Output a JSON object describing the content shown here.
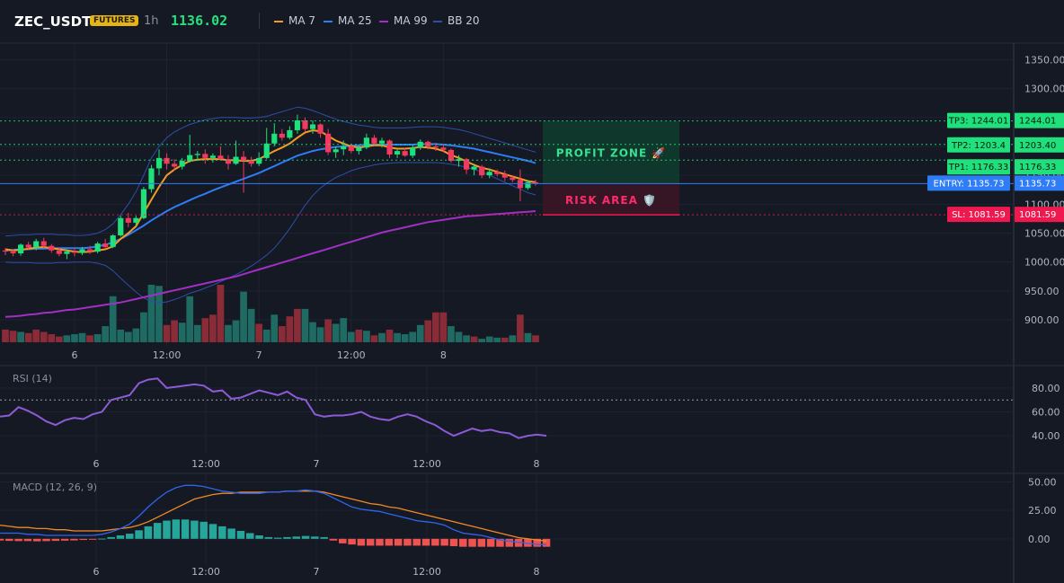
{
  "header": {
    "symbol": "ZEC_USDT",
    "badge": "FUTURES",
    "timeframe": "1h",
    "price": "1136.02",
    "legend": [
      {
        "label": "MA 7",
        "color": "#f59b22"
      },
      {
        "label": "MA 25",
        "color": "#2f7df6"
      },
      {
        "label": "MA 99",
        "color": "#a22fc4"
      },
      {
        "label": "BB 20",
        "color": "#2e4ea8"
      }
    ]
  },
  "colors": {
    "up": "#26a69a",
    "up_bright": "#1fe07a",
    "down": "#f23a5e",
    "vol_up": "#1f6b63",
    "vol_down": "#8a2b38",
    "tp": "#1fe07a",
    "entry": "#2f7df6",
    "sl": "#f0194f"
  },
  "chart_data": [
    {
      "type": "candlestick",
      "title": "ZEC_USDT",
      "ylim": [
        855,
        1360
      ],
      "y_ticks": [
        "1350.00",
        "1300.00",
        "1250.00",
        "1200.00",
        "1150.00",
        "1100.00",
        "1050.00",
        "1000.00",
        "950.00",
        "900.00"
      ],
      "x_ticks": [
        "6",
        "12:00",
        "7",
        "12:00",
        "8"
      ],
      "ohlc": [
        [
          1020,
          1024,
          1012,
          1018
        ],
        [
          1018,
          1022,
          1010,
          1015
        ],
        [
          1015,
          1032,
          1011,
          1030
        ],
        [
          1030,
          1035,
          1022,
          1025
        ],
        [
          1025,
          1040,
          1020,
          1036
        ],
        [
          1036,
          1042,
          1024,
          1028
        ],
        [
          1028,
          1031,
          1016,
          1020
        ],
        [
          1020,
          1025,
          1010,
          1014
        ],
        [
          1014,
          1022,
          1005,
          1018
        ],
        [
          1018,
          1024,
          1010,
          1016
        ],
        [
          1016,
          1026,
          1012,
          1022
        ],
        [
          1022,
          1028,
          1014,
          1018
        ],
        [
          1018,
          1035,
          1015,
          1032
        ],
        [
          1032,
          1040,
          1022,
          1026
        ],
        [
          1026,
          1048,
          1024,
          1046
        ],
        [
          1046,
          1080,
          1044,
          1076
        ],
        [
          1076,
          1085,
          1060,
          1068
        ],
        [
          1068,
          1080,
          1062,
          1076
        ],
        [
          1076,
          1130,
          1074,
          1126
        ],
        [
          1126,
          1168,
          1120,
          1162
        ],
        [
          1162,
          1195,
          1150,
          1180
        ],
        [
          1180,
          1188,
          1160,
          1170
        ],
        [
          1170,
          1178,
          1158,
          1165
        ],
        [
          1165,
          1180,
          1160,
          1175
        ],
        [
          1175,
          1220,
          1172,
          1185
        ],
        [
          1185,
          1192,
          1175,
          1187
        ],
        [
          1187,
          1195,
          1170,
          1180
        ],
        [
          1180,
          1188,
          1172,
          1184
        ],
        [
          1184,
          1200,
          1176,
          1178
        ],
        [
          1178,
          1185,
          1160,
          1170
        ],
        [
          1170,
          1210,
          1168,
          1182
        ],
        [
          1182,
          1192,
          1120,
          1175
        ],
        [
          1175,
          1182,
          1165,
          1170
        ],
        [
          1170,
          1190,
          1166,
          1180
        ],
        [
          1180,
          1232,
          1178,
          1205
        ],
        [
          1205,
          1240,
          1200,
          1222
        ],
        [
          1222,
          1230,
          1210,
          1215
        ],
        [
          1215,
          1235,
          1212,
          1228
        ],
        [
          1228,
          1255,
          1222,
          1245
        ],
        [
          1245,
          1250,
          1225,
          1230
        ],
        [
          1230,
          1245,
          1222,
          1238
        ],
        [
          1238,
          1240,
          1215,
          1222
        ],
        [
          1222,
          1230,
          1185,
          1190
        ],
        [
          1190,
          1200,
          1180,
          1195
        ],
        [
          1195,
          1210,
          1185,
          1200
        ],
        [
          1200,
          1205,
          1188,
          1192
        ],
        [
          1192,
          1202,
          1186,
          1198
        ],
        [
          1198,
          1222,
          1195,
          1215
        ],
        [
          1215,
          1220,
          1202,
          1205
        ],
        [
          1205,
          1215,
          1198,
          1210
        ],
        [
          1210,
          1212,
          1180,
          1186
        ],
        [
          1186,
          1196,
          1180,
          1192
        ],
        [
          1192,
          1198,
          1182,
          1184
        ],
        [
          1184,
          1202,
          1180,
          1198
        ],
        [
          1198,
          1212,
          1194,
          1208
        ],
        [
          1208,
          1210,
          1195,
          1200
        ],
        [
          1200,
          1206,
          1192,
          1198
        ],
        [
          1198,
          1204,
          1190,
          1194
        ],
        [
          1194,
          1196,
          1172,
          1175
        ],
        [
          1175,
          1185,
          1165,
          1178
        ],
        [
          1178,
          1180,
          1152,
          1160
        ],
        [
          1160,
          1170,
          1150,
          1165
        ],
        [
          1165,
          1168,
          1145,
          1150
        ],
        [
          1150,
          1162,
          1145,
          1156
        ],
        [
          1156,
          1160,
          1148,
          1152
        ],
        [
          1152,
          1158,
          1140,
          1146
        ],
        [
          1146,
          1150,
          1138,
          1142
        ],
        [
          1142,
          1160,
          1105,
          1128
        ],
        [
          1128,
          1142,
          1125,
          1138
        ],
        [
          1138,
          1142,
          1132,
          1136
        ]
      ],
      "volume": [
        [
          22,
          "d"
        ],
        [
          20,
          "d"
        ],
        [
          18,
          "u"
        ],
        [
          16,
          "d"
        ],
        [
          22,
          "d"
        ],
        [
          18,
          "d"
        ],
        [
          14,
          "d"
        ],
        [
          10,
          "d"
        ],
        [
          12,
          "u"
        ],
        [
          14,
          "u"
        ],
        [
          16,
          "u"
        ],
        [
          12,
          "d"
        ],
        [
          14,
          "u"
        ],
        [
          28,
          "u"
        ],
        [
          80,
          "u"
        ],
        [
          22,
          "u"
        ],
        [
          18,
          "u"
        ],
        [
          24,
          "u"
        ],
        [
          52,
          "u"
        ],
        [
          100,
          "u"
        ],
        [
          98,
          "u"
        ],
        [
          30,
          "d"
        ],
        [
          38,
          "d"
        ],
        [
          34,
          "u"
        ],
        [
          80,
          "u"
        ],
        [
          30,
          "u"
        ],
        [
          42,
          "d"
        ],
        [
          48,
          "d"
        ],
        [
          100,
          "d"
        ],
        [
          30,
          "u"
        ],
        [
          38,
          "u"
        ],
        [
          88,
          "u"
        ],
        [
          58,
          "u"
        ],
        [
          32,
          "d"
        ],
        [
          22,
          "u"
        ],
        [
          48,
          "u"
        ],
        [
          28,
          "d"
        ],
        [
          45,
          "d"
        ],
        [
          58,
          "d"
        ],
        [
          58,
          "u"
        ],
        [
          35,
          "u"
        ],
        [
          26,
          "u"
        ],
        [
          40,
          "d"
        ],
        [
          32,
          "u"
        ],
        [
          42,
          "u"
        ],
        [
          18,
          "u"
        ],
        [
          22,
          "d"
        ],
        [
          20,
          "u"
        ],
        [
          12,
          "d"
        ],
        [
          16,
          "u"
        ],
        [
          22,
          "d"
        ],
        [
          16,
          "u"
        ],
        [
          14,
          "u"
        ],
        [
          18,
          "u"
        ],
        [
          30,
          "u"
        ],
        [
          38,
          "d"
        ],
        [
          52,
          "d"
        ],
        [
          52,
          "d"
        ],
        [
          28,
          "u"
        ],
        [
          18,
          "u"
        ],
        [
          12,
          "u"
        ],
        [
          10,
          "d"
        ],
        [
          6,
          "u"
        ],
        [
          10,
          "u"
        ],
        [
          8,
          "u"
        ],
        [
          8,
          "d"
        ],
        [
          12,
          "u"
        ],
        [
          48,
          "d"
        ],
        [
          16,
          "u"
        ],
        [
          12,
          "d"
        ]
      ],
      "ma7": [
        1022,
        1020,
        1021,
        1023,
        1025,
        1026,
        1024,
        1022,
        1020,
        1018,
        1017,
        1018,
        1020,
        1022,
        1027,
        1040,
        1050,
        1062,
        1085,
        1108,
        1130,
        1150,
        1160,
        1168,
        1175,
        1177,
        1178,
        1178,
        1178,
        1176,
        1176,
        1175,
        1175,
        1178,
        1185,
        1192,
        1198,
        1205,
        1215,
        1224,
        1228,
        1226,
        1218,
        1210,
        1205,
        1200,
        1198,
        1200,
        1202,
        1202,
        1198,
        1196,
        1196,
        1197,
        1199,
        1198,
        1196,
        1192,
        1185,
        1180,
        1174,
        1168,
        1163,
        1160,
        1156,
        1152,
        1148,
        1144,
        1140,
        1138
      ],
      "ma25": [
        1020,
        1021,
        1022,
        1022,
        1023,
        1023,
        1024,
        1024,
        1024,
        1024,
        1024,
        1025,
        1027,
        1030,
        1034,
        1040,
        1047,
        1055,
        1063,
        1072,
        1080,
        1088,
        1095,
        1101,
        1107,
        1113,
        1118,
        1124,
        1129,
        1134,
        1139,
        1144,
        1149,
        1154,
        1160,
        1166,
        1172,
        1178,
        1184,
        1188,
        1192,
        1195,
        1197,
        1199,
        1200,
        1201,
        1202,
        1203,
        1203,
        1203,
        1203,
        1203,
        1203,
        1203,
        1204,
        1204,
        1204,
        1203,
        1202,
        1200,
        1198,
        1196,
        1193,
        1190,
        1187,
        1184,
        1181,
        1178,
        1175,
        1171
      ],
      "ma99": [
        905,
        906,
        907,
        909,
        910,
        912,
        913,
        915,
        917,
        918,
        920,
        922,
        924,
        926,
        928,
        930,
        933,
        936,
        939,
        942,
        945,
        948,
        951,
        954,
        957,
        960,
        963,
        966,
        969,
        972,
        975,
        979,
        983,
        987,
        991,
        995,
        999,
        1003,
        1007,
        1011,
        1015,
        1019,
        1023,
        1027,
        1031,
        1035,
        1039,
        1043,
        1047,
        1051,
        1054,
        1057,
        1060,
        1063,
        1066,
        1069,
        1071,
        1073,
        1075,
        1077,
        1079,
        1080,
        1081,
        1082,
        1083,
        1084,
        1085,
        1086,
        1087,
        1088
      ],
      "bb_upper": [
        1045,
        1046,
        1047,
        1047,
        1048,
        1048,
        1048,
        1047,
        1047,
        1046,
        1046,
        1047,
        1050,
        1056,
        1066,
        1082,
        1100,
        1122,
        1150,
        1180,
        1200,
        1215,
        1225,
        1232,
        1238,
        1242,
        1246,
        1248,
        1250,
        1250,
        1250,
        1249,
        1249,
        1250,
        1252,
        1256,
        1260,
        1264,
        1268,
        1266,
        1262,
        1257,
        1252,
        1247,
        1243,
        1240,
        1237,
        1235,
        1233,
        1232,
        1232,
        1232,
        1232,
        1233,
        1234,
        1234,
        1234,
        1233,
        1231,
        1229,
        1226,
        1222,
        1218,
        1214,
        1210,
        1206,
        1202,
        1198,
        1194,
        1190
      ],
      "bb_lower": [
        1000,
        999,
        999,
        999,
        998,
        998,
        998,
        999,
        999,
        1000,
        1000,
        1000,
        998,
        994,
        985,
        972,
        960,
        948,
        938,
        932,
        930,
        931,
        935,
        940,
        946,
        950,
        955,
        960,
        966,
        972,
        978,
        985,
        993,
        1002,
        1012,
        1024,
        1040,
        1058,
        1078,
        1098,
        1115,
        1128,
        1138,
        1146,
        1152,
        1158,
        1162,
        1165,
        1168,
        1170,
        1171,
        1172,
        1172,
        1172,
        1172,
        1172,
        1172,
        1171,
        1169,
        1167,
        1164,
        1160,
        1156,
        1150,
        1144,
        1138,
        1132,
        1126,
        1120,
        1116
      ],
      "levels": [
        {
          "label": "TP3: 1244.01",
          "value": 1244.01,
          "price_label": "1244.01"
        },
        {
          "label": "TP2: 1203.4",
          "value": 1203.4,
          "price_label": "1203.40"
        },
        {
          "label": "TP1: 1176.33",
          "value": 1176.33,
          "price_label": "1176.33"
        },
        {
          "label": "ENTRY: 1135.73",
          "value": 1135.73,
          "price_label": "1135.73"
        },
        {
          "label": "SL: 1081.59",
          "value": 1081.59,
          "price_label": "1081.59"
        }
      ],
      "zones": {
        "profit": "PROFIT ZONE 🚀",
        "risk": "RISK AREA 🛡️"
      }
    },
    {
      "type": "line",
      "title": "RSI (14)",
      "ylim": [
        25,
        95
      ],
      "y_ticks": [
        "80.00",
        "60.00",
        "40.00"
      ],
      "x_ticks": [
        "6",
        "12:00",
        "7",
        "12:00",
        "8"
      ],
      "level": 70,
      "values": [
        56,
        57,
        64,
        61,
        57,
        52,
        49,
        53,
        55,
        54,
        58,
        60,
        70,
        72,
        74,
        84,
        87,
        88,
        80,
        81,
        82,
        83,
        82,
        77,
        78,
        71,
        72,
        75,
        78,
        76,
        74,
        77,
        72,
        70,
        58,
        56,
        57,
        57,
        58,
        60,
        56,
        54,
        53,
        56,
        58,
        56,
        52,
        49,
        44,
        40,
        43,
        46,
        44,
        45,
        43,
        42,
        38,
        40,
        41,
        40
      ]
    },
    {
      "type": "bar",
      "title": "MACD (12, 26, 9)",
      "ylim": [
        -12,
        52
      ],
      "y_ticks": [
        "50.00",
        "25.00",
        "0.00"
      ],
      "x_ticks": [
        "6",
        "12:00",
        "7",
        "12:00",
        "8"
      ],
      "macd": [
        5,
        5,
        5,
        4,
        4,
        3,
        3,
        3,
        3,
        3,
        3,
        4,
        6,
        9,
        13,
        20,
        28,
        35,
        41,
        45,
        47,
        47,
        46,
        44,
        42,
        41,
        40,
        40,
        40,
        41,
        41,
        42,
        42,
        43,
        42,
        40,
        36,
        32,
        28,
        26,
        25,
        24,
        22,
        20,
        18,
        16,
        15,
        14,
        12,
        8,
        5,
        4,
        3,
        1,
        -1,
        -2,
        -3,
        -4,
        -5,
        -5
      ],
      "signal": [
        12,
        11,
        10,
        10,
        9,
        9,
        8,
        8,
        7,
        7,
        7,
        7,
        8,
        9,
        10,
        12,
        15,
        19,
        23,
        27,
        31,
        35,
        37,
        39,
        40,
        40,
        41,
        41,
        41,
        41,
        41,
        42,
        42,
        42,
        42,
        41,
        39,
        37,
        35,
        33,
        31,
        30,
        28,
        27,
        25,
        23,
        21,
        19,
        17,
        15,
        13,
        11,
        9,
        7,
        5,
        3,
        1,
        0,
        -1,
        -2
      ],
      "hist": [
        -1.5,
        -1.8,
        -2.0,
        -2.0,
        -2.2,
        -2.0,
        -1.8,
        -1.6,
        -1.4,
        -1.0,
        -0.5,
        0.2,
        1.5,
        3.0,
        4.5,
        7.5,
        11,
        14,
        16,
        17,
        17,
        16,
        15,
        13,
        11,
        9,
        7,
        5,
        3,
        1.5,
        1,
        1.5,
        2,
        2.5,
        2,
        1.5,
        -1.5,
        -4,
        -5,
        -6,
        -6,
        -6,
        -6,
        -6,
        -6,
        -6,
        -6,
        -6,
        -6,
        -6.5,
        -7,
        -7,
        -7,
        -7,
        -7,
        -7,
        -7,
        -7,
        -7,
        -7
      ]
    }
  ]
}
